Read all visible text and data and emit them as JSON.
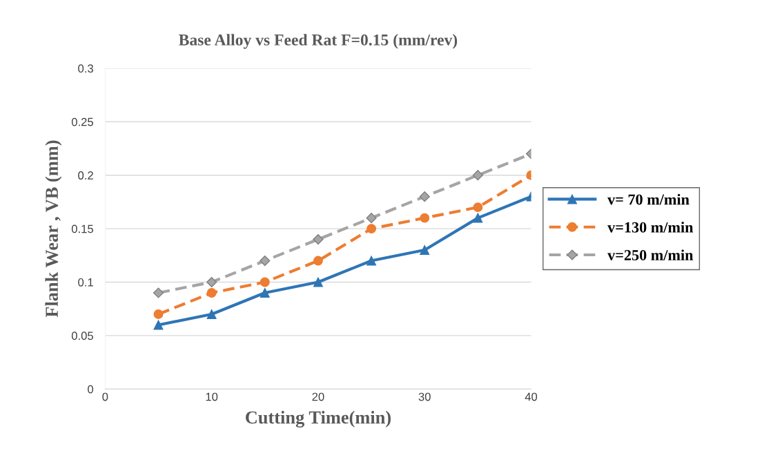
{
  "chart_data": {
    "type": "line",
    "title": "Base Alloy vs Feed Rat F=0.15 (mm/rev)",
    "xlabel": "Cutting Time(min)",
    "ylabel": "Flank Wear , VB (mm)",
    "x": [
      5,
      10,
      15,
      20,
      25,
      30,
      35,
      40
    ],
    "series": [
      {
        "name": "v= 70 m/min",
        "color": "#2e75b6",
        "marker": "triangle",
        "line_style": "solid",
        "values": [
          0.06,
          0.07,
          0.09,
          0.1,
          0.12,
          0.13,
          0.16,
          0.18
        ]
      },
      {
        "name": "v=130 m/min",
        "color": "#ed7d31",
        "marker": "circle",
        "line_style": "dashed",
        "values": [
          0.07,
          0.09,
          0.1,
          0.12,
          0.15,
          0.16,
          0.17,
          0.2
        ]
      },
      {
        "name": "v=250 m/min",
        "color": "#a5a5a5",
        "marker": "diamond",
        "line_style": "dashed",
        "values": [
          0.09,
          0.1,
          0.12,
          0.14,
          0.16,
          0.18,
          0.2,
          0.22
        ]
      }
    ],
    "xlim": [
      0,
      40
    ],
    "xticks": [
      0,
      10,
      20,
      30,
      40
    ],
    "ylim": [
      0,
      0.3
    ],
    "yticks": [
      0,
      0.05,
      0.1,
      0.15,
      0.2,
      0.25,
      0.3
    ],
    "grid": "y",
    "legend": "right"
  }
}
